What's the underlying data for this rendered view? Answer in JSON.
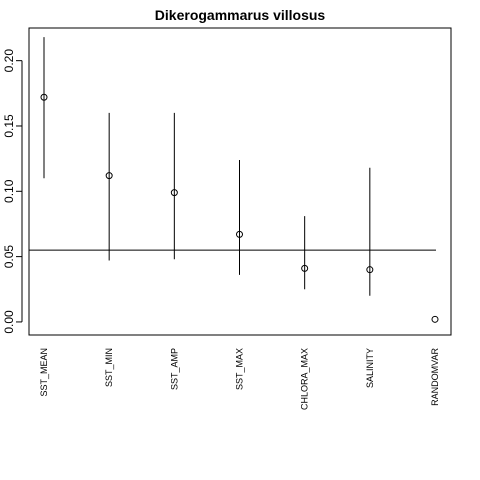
{
  "chart_data": {
    "type": "scatter",
    "title": "Dikerogammarus villosus",
    "xlabel": "",
    "ylabel": "",
    "categories": [
      "SST_MEAN",
      "SST_MIN",
      "SST_AMP",
      "SST_MAX",
      "CHLORA_MAX",
      "SALINITY",
      "RANDOMVAR"
    ],
    "values": [
      0.172,
      0.112,
      0.099,
      0.067,
      0.041,
      0.04,
      0.002
    ],
    "lower": [
      0.11,
      0.047,
      0.048,
      0.036,
      0.025,
      0.02,
      null
    ],
    "upper": [
      0.218,
      0.16,
      0.16,
      0.124,
      0.081,
      0.118,
      null
    ],
    "reference_line": 0.055,
    "ylim": [
      -0.01,
      0.225
    ],
    "yticks": [
      0.0,
      0.05,
      0.1,
      0.15,
      0.2
    ],
    "ytick_labels": [
      "0.00",
      "0.05",
      "0.10",
      "0.15",
      "0.20"
    ],
    "grid": false,
    "legend": "none"
  }
}
